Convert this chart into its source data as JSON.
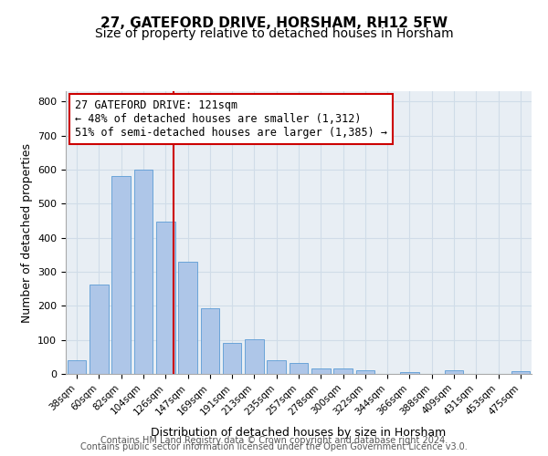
{
  "title_line1": "27, GATEFORD DRIVE, HORSHAM, RH12 5FW",
  "title_line2": "Size of property relative to detached houses in Horsham",
  "xlabel": "Distribution of detached houses by size in Horsham",
  "ylabel": "Number of detached properties",
  "categories": [
    "38sqm",
    "60sqm",
    "82sqm",
    "104sqm",
    "126sqm",
    "147sqm",
    "169sqm",
    "191sqm",
    "213sqm",
    "235sqm",
    "257sqm",
    "278sqm",
    "300sqm",
    "322sqm",
    "344sqm",
    "366sqm",
    "388sqm",
    "409sqm",
    "431sqm",
    "453sqm",
    "475sqm"
  ],
  "values": [
    40,
    262,
    580,
    600,
    448,
    328,
    192,
    90,
    103,
    40,
    33,
    15,
    16,
    12,
    0,
    6,
    0,
    10,
    0,
    0,
    8
  ],
  "bar_color": "#aec6e8",
  "bar_edgecolor": "#5b9bd5",
  "grid_color": "#d0dce8",
  "background_color": "#e8eef4",
  "vline_x": 4,
  "vline_color": "#cc0000",
  "annotation_text": "27 GATEFORD DRIVE: 121sqm\n← 48% of detached houses are smaller (1,312)\n51% of semi-detached houses are larger (1,385) →",
  "annotation_box_color": "#ffffff",
  "annotation_box_edgecolor": "#cc0000",
  "ylim": [
    0,
    830
  ],
  "yticks": [
    0,
    100,
    200,
    300,
    400,
    500,
    600,
    700,
    800
  ],
  "footer_line1": "Contains HM Land Registry data © Crown copyright and database right 2024.",
  "footer_line2": "Contains public sector information licensed under the Open Government Licence v3.0.",
  "title_fontsize": 11,
  "subtitle_fontsize": 10,
  "annotation_fontsize": 8.5,
  "footer_fontsize": 7
}
